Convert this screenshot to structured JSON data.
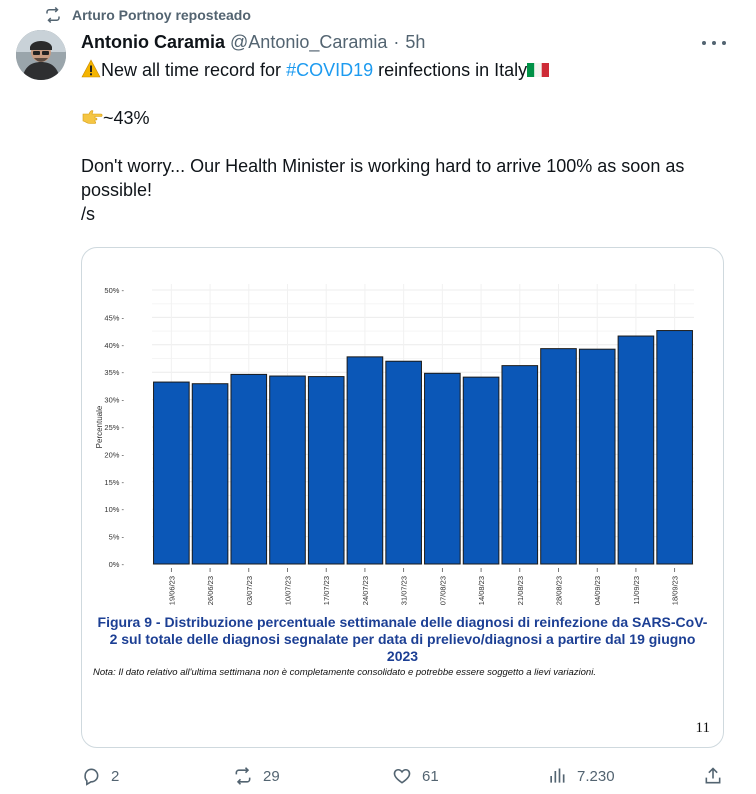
{
  "repost": {
    "text": "Arturo Portnoy reposteado"
  },
  "author": {
    "name": "Antonio Caramia",
    "handle": "@Antonio_Caramia",
    "time": "5h"
  },
  "tweet": {
    "line1_prefix": "New all time record for ",
    "hashtag": "#COVID19",
    "line1_suffix": " reinfections in Italy",
    "line2": "~43%",
    "line3": "Don't worry... Our Health Minister is working hard to arrive 100% as soon as possible!",
    "line4": "/s"
  },
  "media": {
    "caption": "Figura 9 - Distribuzione percentuale settimanale delle diagnosi di reinfezione da SARS-CoV-2 sul totale delle diagnosi segnalate per data di prelievo/diagnosi a partire dal 19 giugno 2023",
    "note": "Nota: Il dato relativo all'ultima settimana non è completamente consolidato e potrebbe essere soggetto a lievi variazioni.",
    "page_number": "11"
  },
  "chart_data": {
    "type": "bar",
    "title": "",
    "xlabel": "",
    "ylabel": "Percentuale",
    "categories": [
      "19/06/23",
      "26/06/23",
      "03/07/23",
      "10/07/23",
      "17/07/23",
      "24/07/23",
      "31/07/23",
      "07/08/23",
      "14/08/23",
      "21/08/23",
      "28/08/23",
      "04/09/23",
      "11/09/23",
      "18/09/23"
    ],
    "values": [
      33.2,
      32.9,
      34.6,
      34.3,
      34.2,
      37.8,
      37.0,
      34.8,
      34.1,
      36.2,
      39.3,
      39.2,
      41.6,
      42.6
    ],
    "ylim": [
      0,
      50
    ],
    "yticks": [
      "0% -",
      "5% -",
      "10% -",
      "15% -",
      "20% -",
      "25% -",
      "30% -",
      "35% -",
      "40% -",
      "45% -",
      "50% -"
    ],
    "grid": true,
    "bar_color": "#0b57b7"
  },
  "actions": {
    "reply": "2",
    "repost": "29",
    "like": "61",
    "views": "7.230"
  },
  "colors": {
    "accent": "#1d9bf0",
    "muted": "#536471",
    "caption": "#1c3f94"
  }
}
